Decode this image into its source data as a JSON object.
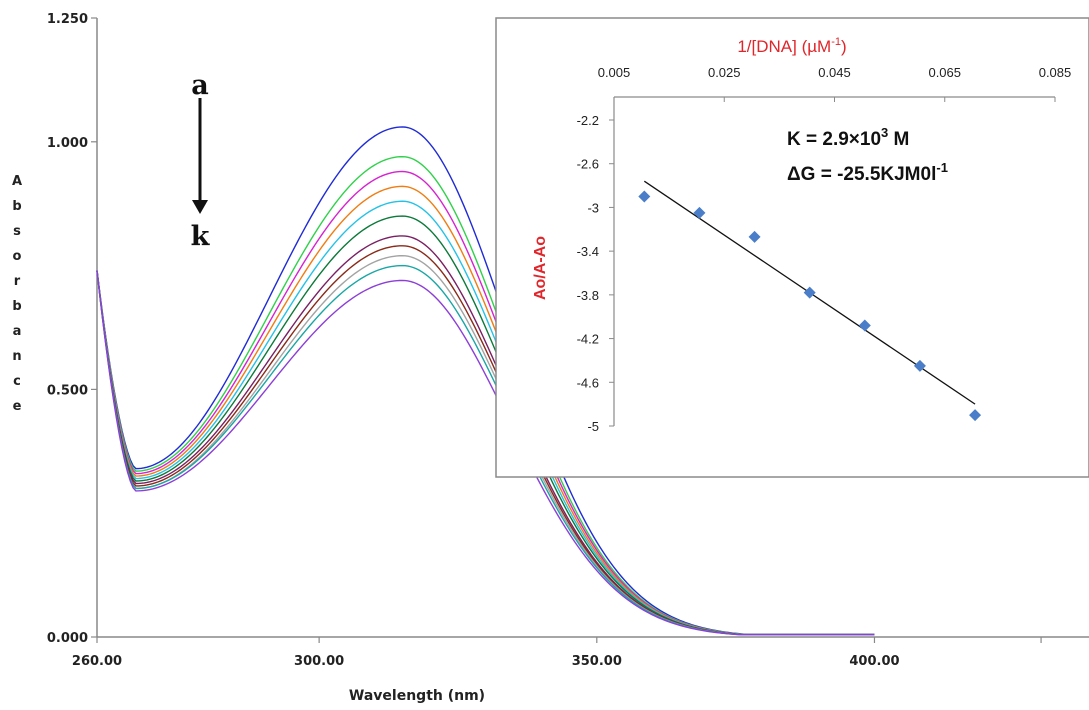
{
  "chart_data": [
    {
      "type": "line",
      "xlabel": "Wavelength (nm)",
      "ylabel": "Absorbance",
      "xticks": [
        "260.00",
        "300.00",
        "350.00",
        "400.00"
      ],
      "yticks": [
        "0.000",
        "0.500",
        "1.000",
        "1.250"
      ],
      "xlim": [
        260,
        400
      ],
      "ylim": [
        0,
        1.25
      ],
      "arrow_labels": {
        "start": "a",
        "end": "k"
      },
      "spectra": {
        "peak_wavelength": 315,
        "min_wavelength": 267,
        "series": [
          {
            "peak": 1.03,
            "min": 0.34,
            "color": "#1f2bd6"
          },
          {
            "peak": 0.97,
            "min": 0.335,
            "color": "#2fd14a"
          },
          {
            "peak": 0.94,
            "min": 0.33,
            "color": "#d623d0"
          },
          {
            "peak": 0.91,
            "min": 0.325,
            "color": "#f07d12"
          },
          {
            "peak": 0.88,
            "min": 0.32,
            "color": "#25c2e6"
          },
          {
            "peak": 0.85,
            "min": 0.315,
            "color": "#0c7a3a"
          },
          {
            "peak": 0.81,
            "min": 0.31,
            "color": "#7a1f63"
          },
          {
            "peak": 0.79,
            "min": 0.305,
            "color": "#8a2a18"
          },
          {
            "peak": 0.77,
            "min": 0.3,
            "color": "#a3a3a3"
          },
          {
            "peak": 0.75,
            "min": 0.3,
            "color": "#1aa6a6"
          },
          {
            "peak": 0.72,
            "min": 0.295,
            "color": "#8c3fd6"
          }
        ]
      }
    },
    {
      "type": "scatter",
      "title": "1/[DNA] (µM",
      "title_sup": "-1",
      "title_close": ")",
      "ylabel": "Ao/A-Ao",
      "xticks": [
        "0.005",
        "0.025",
        "0.045",
        "0.065",
        "0.085"
      ],
      "yticks": [
        "-2.2",
        "-2.6",
        "-3",
        "-3.4",
        "-3.8",
        "-4.2",
        "-4.6",
        "-5"
      ],
      "xlim": [
        0.005,
        0.085
      ],
      "ylim": [
        -5,
        -2.2
      ],
      "x_axis_position": "top",
      "points": [
        {
          "x": 0.0105,
          "y": -2.9
        },
        {
          "x": 0.0205,
          "y": -3.05
        },
        {
          "x": 0.0305,
          "y": -3.27
        },
        {
          "x": 0.0405,
          "y": -3.78
        },
        {
          "x": 0.0505,
          "y": -4.08
        },
        {
          "x": 0.0605,
          "y": -4.45
        },
        {
          "x": 0.0705,
          "y": -4.9
        }
      ],
      "fit_line": {
        "x": [
          0.0105,
          0.0705
        ],
        "y": [
          -2.76,
          -4.8
        ]
      },
      "marker_color": "#4a7ec9",
      "annotations": {
        "k_prefix": "K = 2.9×10",
        "k_sup": "3",
        "k_suffix": " M",
        "dg_prefix": "ΔG = -25.5KJM0l",
        "dg_sup": "-1"
      }
    }
  ]
}
